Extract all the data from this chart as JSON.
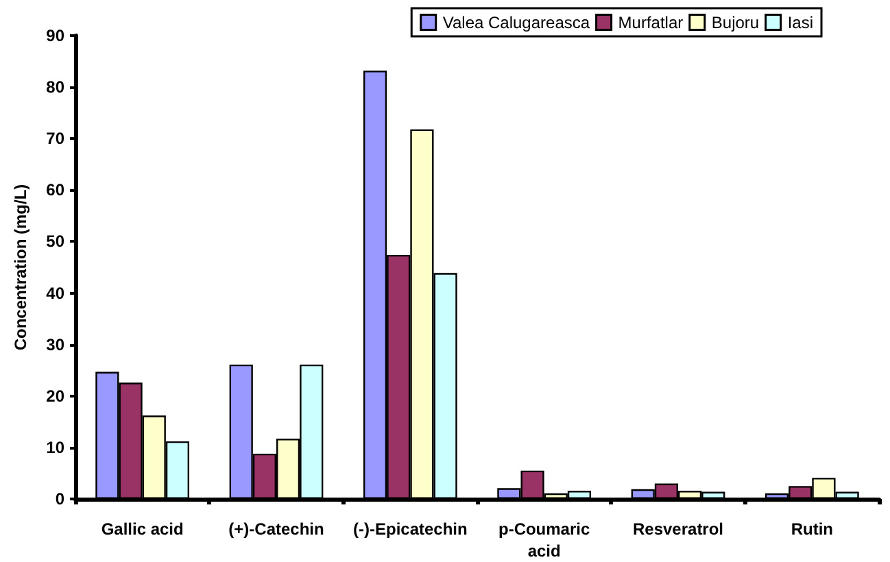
{
  "chart_data": {
    "type": "bar",
    "ylabel": "Concentration (mg/L)",
    "categories": [
      "Gallic acid",
      "(+)-Catechin",
      "(-)-Epicatechin",
      "p-Coumaric\nacid",
      "Resveratrol",
      "Rutin"
    ],
    "series": [
      {
        "name": "Valea Calugareasca",
        "color": "#9999ff",
        "values": [
          24.7,
          26.1,
          83.2,
          2.1,
          1.9,
          1.1
        ]
      },
      {
        "name": "Murfatlar",
        "color": "#993366",
        "values": [
          22.6,
          8.8,
          47.4,
          5.5,
          3.0,
          2.5
        ]
      },
      {
        "name": "Bujoru",
        "color": "#ffffcc",
        "values": [
          16.2,
          11.7,
          71.8,
          1.1,
          1.6,
          4.1
        ]
      },
      {
        "name": "Iasi",
        "color": "#ccffff",
        "values": [
          11.2,
          26.1,
          43.9,
          1.6,
          1.4,
          1.4
        ]
      }
    ],
    "ylim": [
      0,
      90
    ],
    "yticks": [
      0,
      10,
      20,
      30,
      40,
      50,
      60,
      70,
      80,
      90
    ],
    "grid": false,
    "legend": "top right"
  }
}
